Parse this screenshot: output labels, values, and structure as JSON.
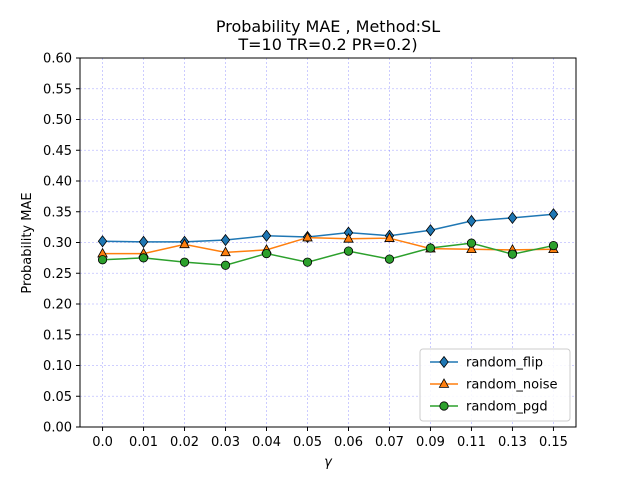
{
  "chart_data": {
    "type": "line",
    "title_line1": "Probability MAE , Method:SL",
    "title_line2": "T=10 TR=0.2 PR=0.2)",
    "xlabel": "γ",
    "ylabel": "Probability MAE",
    "categories": [
      "0.0",
      "0.01",
      "0.02",
      "0.03",
      "0.04",
      "0.05",
      "0.06",
      "0.07",
      "0.09",
      "0.11",
      "0.13",
      "0.15"
    ],
    "ylim": [
      0.0,
      0.6
    ],
    "yticks": [
      "0.00",
      "0.05",
      "0.10",
      "0.15",
      "0.20",
      "0.25",
      "0.30",
      "0.35",
      "0.40",
      "0.45",
      "0.50",
      "0.55",
      "0.60"
    ],
    "grid": true,
    "grid_color": "#0000ff",
    "legend_position": "lower-right",
    "series": [
      {
        "name": "random_flip",
        "color": "#1f77b4",
        "marker": "diamond",
        "values": [
          0.302,
          0.301,
          0.301,
          0.304,
          0.311,
          0.309,
          0.316,
          0.311,
          0.32,
          0.335,
          0.34,
          0.346
        ]
      },
      {
        "name": "random_noise",
        "color": "#ff7f0e",
        "marker": "triangle",
        "values": [
          0.282,
          0.282,
          0.297,
          0.284,
          0.288,
          0.308,
          0.306,
          0.307,
          0.29,
          0.289,
          0.288,
          0.289
        ]
      },
      {
        "name": "random_pgd",
        "color": "#2ca02c",
        "marker": "circle",
        "values": [
          0.272,
          0.275,
          0.268,
          0.263,
          0.282,
          0.268,
          0.286,
          0.273,
          0.291,
          0.299,
          0.281,
          0.295
        ]
      }
    ]
  }
}
